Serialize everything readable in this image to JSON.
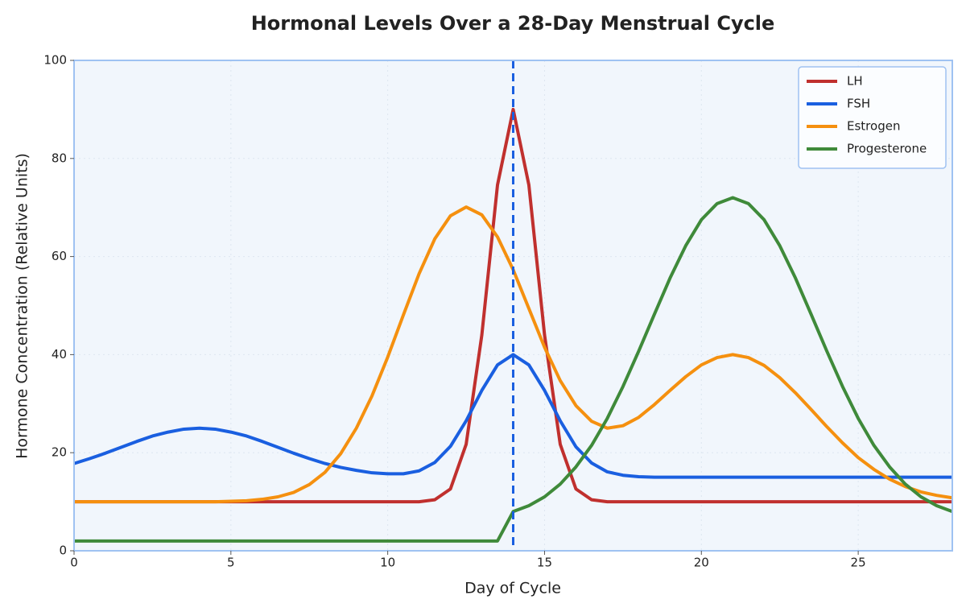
{
  "chart_data": {
    "type": "line",
    "title": "Hormonal Levels Over a 28-Day Menstrual Cycle",
    "xlabel": "Day of Cycle",
    "ylabel": "Hormone Concentration (Relative Units)",
    "x": [
      0,
      0.5,
      1,
      1.5,
      2,
      2.5,
      3,
      3.5,
      4,
      4.5,
      5,
      5.5,
      6,
      6.5,
      7,
      7.5,
      8,
      8.5,
      9,
      9.5,
      10,
      10.5,
      11,
      11.5,
      12,
      12.5,
      13,
      13.5,
      14,
      14.5,
      15,
      15.5,
      16,
      16.5,
      17,
      17.5,
      18,
      18.5,
      19,
      19.5,
      20,
      20.5,
      21,
      21.5,
      22,
      22.5,
      23,
      23.5,
      24,
      24.5,
      25,
      25.5,
      26,
      26.5,
      27,
      27.5,
      28
    ],
    "series": [
      {
        "name": "LH",
        "color": "#c0302e",
        "values": [
          10,
          10,
          10,
          10,
          10,
          10,
          10,
          10,
          10,
          10,
          10,
          10,
          10,
          10,
          10,
          10,
          10,
          10,
          10,
          10,
          10,
          10,
          10,
          10.4,
          12.6,
          21.7,
          44,
          74.6,
          90,
          74.6,
          44,
          21.7,
          12.6,
          10.4,
          10,
          10,
          10,
          10,
          10,
          10,
          10,
          10,
          10,
          10,
          10,
          10,
          10,
          10,
          10,
          10,
          10,
          10,
          10,
          10,
          10,
          10,
          10
        ]
      },
      {
        "name": "FSH",
        "color": "#1a5fe0",
        "values": [
          17.8,
          18.8,
          19.9,
          21.1,
          22.3,
          23.4,
          24.2,
          24.8,
          25,
          24.8,
          24.2,
          23.4,
          22.3,
          21.1,
          19.9,
          18.8,
          17.8,
          17.0,
          16.4,
          15.9,
          15.7,
          15.7,
          16.3,
          18.0,
          21.3,
          26.5,
          32.7,
          37.9,
          40,
          37.9,
          32.7,
          26.5,
          21.2,
          17.9,
          16.1,
          15.4,
          15.1,
          15,
          15,
          15,
          15,
          15,
          15,
          15,
          15,
          15,
          15,
          15,
          15,
          15,
          15,
          15,
          15,
          15,
          15,
          15,
          15
        ]
      },
      {
        "name": "Estrogen",
        "color": "#f5900f",
        "values": [
          10,
          10,
          10,
          10,
          10,
          10,
          10,
          10,
          10,
          10,
          10.1,
          10.2,
          10.5,
          11.0,
          11.9,
          13.5,
          16.0,
          19.8,
          25.0,
          31.6,
          39.5,
          48.1,
          56.5,
          63.6,
          68.3,
          70.1,
          68.5,
          64.0,
          57.3,
          49.4,
          41.5,
          34.7,
          29.6,
          26.4,
          25.0,
          25.5,
          27.2,
          29.8,
          32.7,
          35.5,
          37.9,
          39.4,
          40,
          39.4,
          37.8,
          35.3,
          32.2,
          28.8,
          25.3,
          22.0,
          19.0,
          16.6,
          14.6,
          13.1,
          12.0,
          11.3,
          10.8
        ]
      },
      {
        "name": "Progesterone",
        "color": "#3f8a3a",
        "values": [
          2,
          2,
          2,
          2,
          2,
          2,
          2,
          2,
          2,
          2,
          2,
          2,
          2,
          2,
          2,
          2,
          2,
          2,
          2,
          2,
          2,
          2,
          2,
          2,
          2,
          2,
          2,
          2,
          8.0,
          9.2,
          11.0,
          13.6,
          17.1,
          21.5,
          27.0,
          33.5,
          40.7,
          48.2,
          55.6,
          62.2,
          67.5,
          70.8,
          72,
          70.8,
          67.5,
          62.2,
          55.6,
          48.2,
          40.7,
          33.5,
          27.0,
          21.5,
          17.1,
          13.6,
          11.0,
          9.2,
          8.0
        ]
      }
    ],
    "vline_x": 14,
    "xlim": [
      0,
      28
    ],
    "xticks": [
      0,
      5,
      10,
      15,
      20,
      25
    ],
    "ylim": [
      0,
      100
    ],
    "yticks": [
      0,
      20,
      40,
      60,
      80,
      100
    ],
    "grid": true,
    "legend": "upper-right"
  }
}
